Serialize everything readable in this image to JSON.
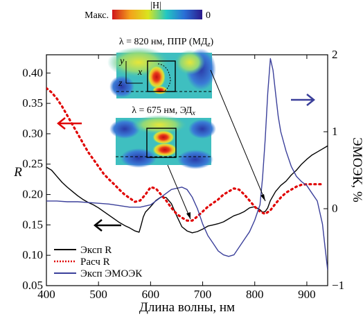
{
  "chart_data": {
    "type": "line",
    "x_label": "Длина волны, нм",
    "y_label_left": "R",
    "y_label_right": "ЭМОЭК, %",
    "xlim": [
      400,
      940
    ],
    "ylim_left": [
      0.05,
      0.43
    ],
    "ylim_right": [
      -1,
      2
    ],
    "x_ticks": [
      "400",
      "500",
      "600",
      "700",
      "800",
      "900"
    ],
    "y_ticks_left": [
      "0.05",
      "0.10",
      "0.15",
      "0.20",
      "0.25",
      "0.30",
      "0.35",
      "0.40"
    ],
    "y_ticks_right": [
      "-1",
      "0",
      "1",
      "2"
    ],
    "series": [
      {
        "name": "Эксп R",
        "axis": "left",
        "style": "solid",
        "color": "#000000",
        "x": [
          400,
          410,
          420,
          430,
          440,
          450,
          460,
          470,
          480,
          490,
          500,
          510,
          520,
          530,
          540,
          550,
          560,
          570,
          578,
          582,
          586,
          590,
          600,
          610,
          620,
          630,
          640,
          650,
          660,
          670,
          680,
          690,
          700,
          710,
          720,
          730,
          740,
          750,
          760,
          770,
          780,
          790,
          800,
          810,
          815,
          820,
          825,
          830,
          840,
          850,
          860,
          870,
          880,
          890,
          900,
          910,
          920,
          930,
          940
        ],
        "y": [
          0.245,
          0.24,
          0.23,
          0.22,
          0.212,
          0.205,
          0.198,
          0.192,
          0.187,
          0.183,
          0.178,
          0.172,
          0.166,
          0.16,
          0.154,
          0.149,
          0.145,
          0.14,
          0.138,
          0.15,
          0.163,
          0.171,
          0.18,
          0.19,
          0.196,
          0.195,
          0.185,
          0.165,
          0.147,
          0.14,
          0.137,
          0.139,
          0.143,
          0.148,
          0.15,
          0.152,
          0.155,
          0.16,
          0.165,
          0.168,
          0.172,
          0.178,
          0.18,
          0.175,
          0.171,
          0.172,
          0.178,
          0.19,
          0.205,
          0.215,
          0.222,
          0.232,
          0.24,
          0.25,
          0.258,
          0.265,
          0.27,
          0.275,
          0.28
        ]
      },
      {
        "name": "Расч R",
        "axis": "left",
        "style": "dotted",
        "color": "#e00000",
        "x": [
          400,
          410,
          420,
          430,
          440,
          450,
          460,
          470,
          480,
          490,
          500,
          510,
          520,
          530,
          540,
          550,
          560,
          570,
          580,
          590,
          600,
          610,
          620,
          630,
          640,
          650,
          660,
          670,
          680,
          690,
          700,
          710,
          720,
          730,
          740,
          750,
          760,
          770,
          780,
          790,
          800,
          810,
          820,
          830,
          840,
          850,
          860,
          870,
          880,
          890,
          900,
          910,
          920,
          930
        ],
        "y": [
          0.375,
          0.368,
          0.358,
          0.345,
          0.33,
          0.315,
          0.3,
          0.285,
          0.27,
          0.258,
          0.246,
          0.234,
          0.225,
          0.217,
          0.208,
          0.2,
          0.194,
          0.188,
          0.19,
          0.2,
          0.212,
          0.21,
          0.2,
          0.19,
          0.178,
          0.168,
          0.162,
          0.157,
          0.157,
          0.164,
          0.172,
          0.18,
          0.186,
          0.192,
          0.2,
          0.205,
          0.21,
          0.208,
          0.2,
          0.19,
          0.18,
          0.172,
          0.168,
          0.174,
          0.185,
          0.195,
          0.203,
          0.208,
          0.213,
          0.216,
          0.217,
          0.217,
          0.217,
          0.217
        ]
      },
      {
        "name": "Эксп ЭМОЭК",
        "axis": "right",
        "style": "solid",
        "color": "#3a3f9a",
        "x": [
          400,
          420,
          440,
          460,
          480,
          500,
          520,
          540,
          560,
          580,
          600,
          620,
          640,
          660,
          670,
          680,
          690,
          700,
          710,
          720,
          730,
          740,
          750,
          760,
          770,
          780,
          790,
          800,
          810,
          815,
          820,
          825,
          830,
          835,
          840,
          845,
          850,
          860,
          870,
          880,
          890,
          900,
          910,
          920,
          930,
          935,
          940
        ],
        "y": [
          0.1,
          0.1,
          0.09,
          0.09,
          0.08,
          0.07,
          0.06,
          0.04,
          0.02,
          0.02,
          0.05,
          0.15,
          0.25,
          0.28,
          0.25,
          0.15,
          0.0,
          -0.2,
          -0.35,
          -0.45,
          -0.55,
          -0.6,
          -0.62,
          -0.6,
          -0.5,
          -0.4,
          -0.3,
          -0.15,
          0.05,
          0.4,
          0.9,
          1.5,
          1.95,
          1.8,
          1.5,
          1.2,
          1.0,
          0.75,
          0.55,
          0.42,
          0.35,
          0.3,
          0.2,
          0.1,
          -0.2,
          -0.5,
          -0.8
        ]
      }
    ],
    "legend": {
      "position": "bottom-left",
      "entries": [
        "Эксп R",
        "Расч R",
        "Эксп ЭМОЭК"
      ]
    },
    "colorbar": {
      "left_label": "Макс.",
      "title": "|H|",
      "right_label": "0"
    },
    "insets": [
      {
        "title": "λ = 820 нм, ППР (МД",
        "subscript": "z",
        "title_end": ")",
        "axis_labels": [
          "y",
          "x",
          "z"
        ]
      },
      {
        "title": "λ = 675 нм, ЭД",
        "subscript": "x",
        "title_end": ""
      }
    ]
  }
}
